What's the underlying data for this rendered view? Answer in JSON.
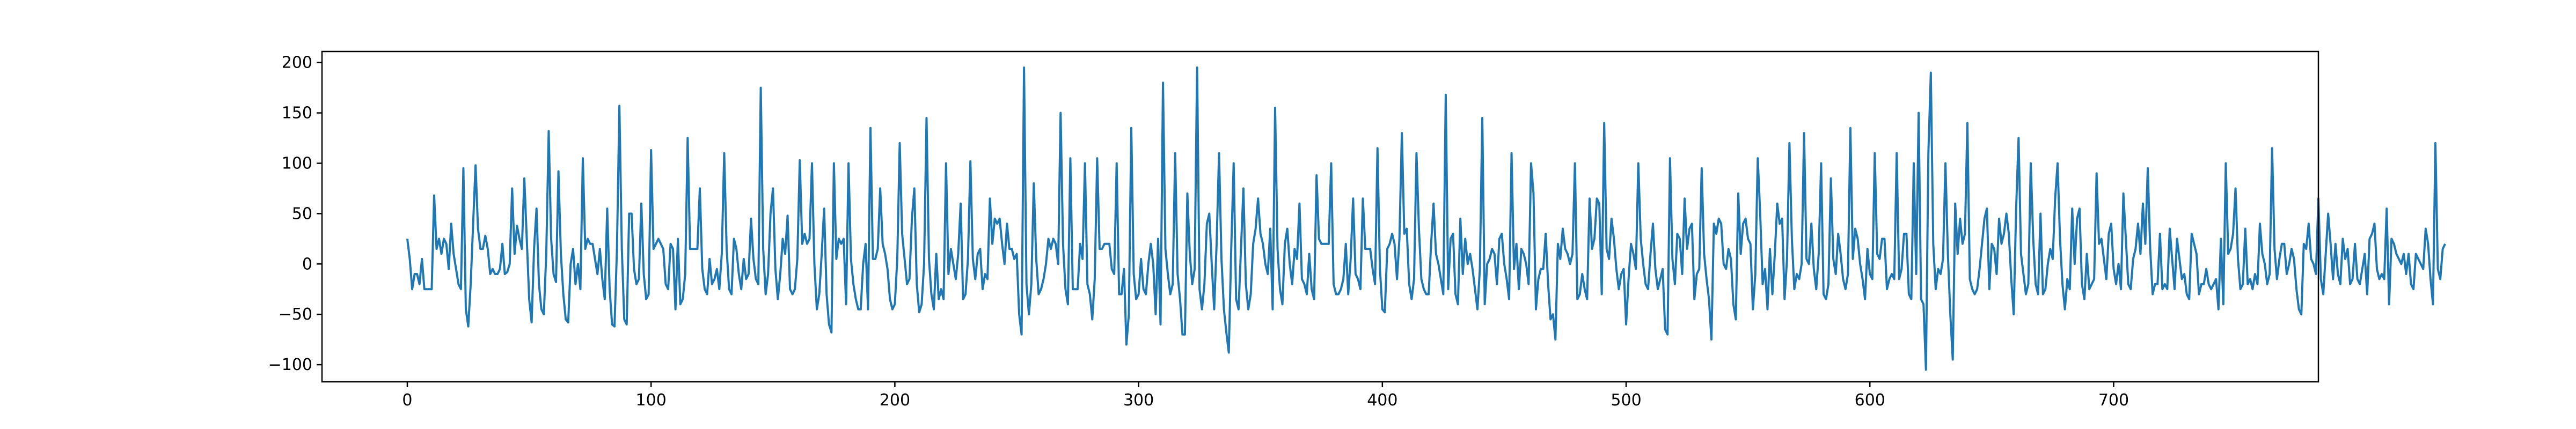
{
  "chart_data": {
    "type": "line",
    "title": "",
    "xlabel": "",
    "ylabel": "",
    "xlim": [
      -35,
      784
    ],
    "ylim": [
      -117,
      211
    ],
    "grid": false,
    "legend": "none",
    "x_ticks": [
      0,
      100,
      200,
      300,
      400,
      500,
      600,
      700
    ],
    "y_ticks": [
      -100,
      -50,
      0,
      50,
      100,
      150,
      200
    ],
    "x_tick_labels": [
      "0",
      "100",
      "200",
      "300",
      "400",
      "500",
      "600",
      "700"
    ],
    "y_tick_labels": [
      "−100",
      "−50",
      "0",
      "50",
      "100",
      "150",
      "200"
    ],
    "line_color": "#1f77b4",
    "series": [
      {
        "x_start": 0,
        "x_step": 1,
        "values": [
          25,
          5,
          -25,
          -10,
          -10,
          -20,
          5,
          -25,
          -25,
          -25,
          -25,
          68,
          15,
          25,
          10,
          25,
          20,
          -5,
          40,
          10,
          -5,
          -20,
          -25,
          95,
          -45,
          -62,
          -20,
          40,
          98,
          35,
          15,
          15,
          28,
          15,
          -10,
          -5,
          -10,
          -10,
          -5,
          20,
          -10,
          -8,
          0,
          75,
          10,
          38,
          25,
          15,
          85,
          25,
          -35,
          -58,
          15,
          55,
          -20,
          -45,
          -50,
          10,
          132,
          25,
          -10,
          -18,
          92,
          10,
          -30,
          -55,
          -58,
          0,
          15,
          -20,
          0,
          -25,
          105,
          15,
          25,
          20,
          20,
          5,
          -10,
          15,
          -15,
          -35,
          55,
          -25,
          -60,
          -62,
          15,
          157,
          15,
          -55,
          -60,
          50,
          50,
          -5,
          -20,
          -15,
          60,
          -10,
          -35,
          -30,
          113,
          15,
          20,
          25,
          20,
          15,
          -20,
          -25,
          20,
          15,
          -45,
          25,
          -40,
          -35,
          -10,
          125,
          15,
          15,
          15,
          15,
          75,
          -5,
          -25,
          -30,
          5,
          -20,
          -15,
          -5,
          -25,
          10,
          110,
          15,
          -25,
          -30,
          25,
          15,
          -10,
          -25,
          5,
          -15,
          -10,
          45,
          5,
          -15,
          -20,
          175,
          15,
          -30,
          -10,
          50,
          75,
          -5,
          -35,
          -10,
          25,
          10,
          48,
          -25,
          -30,
          -25,
          5,
          103,
          20,
          30,
          20,
          25,
          100,
          0,
          -45,
          -30,
          10,
          55,
          -30,
          -60,
          -68,
          100,
          5,
          25,
          20,
          25,
          -40,
          100,
          5,
          -20,
          -35,
          -45,
          -45,
          0,
          20,
          -45,
          135,
          5,
          5,
          15,
          75,
          20,
          10,
          -5,
          -35,
          -45,
          -40,
          5,
          120,
          30,
          5,
          -20,
          -15,
          45,
          75,
          -20,
          -48,
          -40,
          0,
          145,
          5,
          -30,
          -45,
          10,
          -35,
          -25,
          -35,
          100,
          -10,
          15,
          0,
          -15,
          10,
          60,
          -35,
          -30,
          5,
          102,
          5,
          -15,
          10,
          15,
          -25,
          -10,
          -15,
          65,
          20,
          45,
          40,
          45,
          20,
          0,
          40,
          15,
          15,
          5,
          10,
          -50,
          -70,
          195,
          -20,
          -50,
          -20,
          80,
          5,
          -30,
          -25,
          -15,
          0,
          25,
          15,
          25,
          20,
          0,
          150,
          20,
          -25,
          -40,
          105,
          -25,
          -25,
          -25,
          20,
          5,
          100,
          -20,
          -30,
          -55,
          -15,
          105,
          15,
          15,
          20,
          20,
          20,
          -5,
          -10,
          100,
          -30,
          -30,
          -5,
          -80,
          -50,
          135,
          -10,
          -35,
          -30,
          5,
          -25,
          -30,
          0,
          20,
          0,
          -50,
          25,
          -60,
          180,
          15,
          -10,
          -30,
          -20,
          110,
          -10,
          -35,
          -70,
          -70,
          70,
          10,
          -20,
          -5,
          195,
          -25,
          -45,
          -20,
          40,
          50,
          0,
          -45,
          20,
          110,
          5,
          -45,
          -68,
          -88,
          15,
          100,
          -35,
          -45,
          15,
          75,
          -20,
          -45,
          -30,
          20,
          35,
          65,
          30,
          20,
          0,
          -10,
          35,
          -45,
          155,
          15,
          -25,
          -40,
          20,
          35,
          0,
          -20,
          15,
          5,
          60,
          -15,
          -20,
          -30,
          10,
          -25,
          -35,
          88,
          25,
          20,
          20,
          20,
          20,
          100,
          -20,
          -30,
          -30,
          -25,
          -15,
          20,
          -30,
          5,
          65,
          -10,
          -15,
          -25,
          65,
          15,
          15,
          15,
          -5,
          -20,
          115,
          -5,
          -45,
          -48,
          15,
          20,
          30,
          20,
          -15,
          25,
          130,
          30,
          35,
          -20,
          -35,
          -15,
          110,
          35,
          -15,
          -25,
          -30,
          -30,
          20,
          60,
          10,
          0,
          -15,
          -30,
          168,
          -25,
          25,
          30,
          -30,
          -40,
          45,
          -10,
          25,
          0,
          10,
          -5,
          -25,
          -45,
          -5,
          145,
          -40,
          0,
          5,
          15,
          10,
          -20,
          25,
          30,
          0,
          -15,
          -35,
          110,
          -5,
          20,
          -25,
          15,
          10,
          0,
          -20,
          100,
          70,
          -45,
          -15,
          -5,
          -5,
          30,
          -20,
          -55,
          -50,
          -75,
          20,
          5,
          35,
          15,
          10,
          0,
          10,
          100,
          -35,
          -30,
          -10,
          -25,
          -35,
          65,
          15,
          25,
          65,
          60,
          -30,
          140,
          15,
          5,
          45,
          25,
          -5,
          -25,
          -10,
          -5,
          -60,
          -15,
          20,
          10,
          -5,
          100,
          25,
          0,
          -20,
          -25,
          10,
          40,
          -5,
          -25,
          -15,
          -5,
          -65,
          -70,
          105,
          5,
          -20,
          30,
          25,
          -10,
          65,
          15,
          35,
          40,
          -35,
          -10,
          -5,
          95,
          10,
          -15,
          -35,
          -75,
          40,
          30,
          45,
          40,
          0,
          -5,
          15,
          5,
          -40,
          -55,
          70,
          10,
          40,
          45,
          25,
          20,
          -45,
          -10,
          105,
          50,
          -20,
          -5,
          -45,
          15,
          -30,
          10,
          60,
          40,
          45,
          -35,
          5,
          120,
          25,
          -25,
          -10,
          -15,
          0,
          130,
          5,
          0,
          40,
          -5,
          -25,
          10,
          100,
          -30,
          -35,
          -20,
          85,
          5,
          -10,
          30,
          10,
          -15,
          -25,
          -10,
          135,
          5,
          35,
          25,
          0,
          -15,
          -35,
          15,
          -10,
          -15,
          110,
          10,
          5,
          25,
          25,
          -25,
          -15,
          -10,
          -15,
          110,
          -15,
          -5,
          30,
          30,
          -30,
          -35,
          100,
          -10,
          150,
          -35,
          -40,
          -105,
          110,
          190,
          20,
          -25,
          -5,
          -10,
          5,
          100,
          10,
          -50,
          -95,
          60,
          10,
          45,
          20,
          30,
          140,
          -15,
          -25,
          -30,
          -25,
          -5,
          20,
          45,
          55,
          -25,
          20,
          15,
          -10,
          45,
          20,
          30,
          50,
          30,
          -15,
          -50,
          55,
          125,
          10,
          -10,
          -30,
          -20,
          100,
          25,
          -20,
          -30,
          50,
          -30,
          -25,
          0,
          15,
          5,
          65,
          100,
          25,
          -20,
          -45,
          -15,
          -25,
          55,
          0,
          45,
          55,
          -20,
          -35,
          10,
          -25,
          -20,
          -15,
          90,
          20,
          25,
          5,
          -15,
          30,
          40,
          -5,
          -20,
          0,
          -25,
          70,
          25,
          -20,
          -25,
          5,
          15,
          40,
          10,
          60,
          20,
          95,
          15,
          -30,
          -20,
          -20,
          30,
          -25,
          -20,
          -25,
          35,
          5,
          -25,
          25,
          5,
          -15,
          -10,
          -30,
          -35,
          30,
          20,
          10,
          -30,
          -20,
          -20,
          -5,
          -20,
          -25,
          -20,
          -15,
          -45,
          25,
          -40,
          100,
          10,
          15,
          30,
          75,
          5,
          -25,
          -20,
          35,
          -20,
          -15,
          -25,
          -10,
          -20,
          40,
          10,
          0,
          -20,
          -10,
          115,
          15,
          -15,
          5,
          20,
          20,
          -10,
          0,
          15,
          5,
          -25,
          -45,
          -50,
          20,
          15,
          40,
          5,
          0,
          -10,
          65,
          -15,
          -30,
          10,
          50,
          20,
          -15,
          20,
          -10,
          -20,
          25,
          5,
          15,
          -20,
          -15,
          20,
          -15,
          -20,
          -5,
          10,
          -30,
          25,
          30,
          40,
          -5,
          -15,
          -10,
          -15,
          55,
          -40,
          25,
          20,
          10,
          5,
          0,
          10,
          -10,
          10,
          -20,
          -25,
          10,
          5,
          0,
          -5,
          35,
          20,
          -15,
          -40,
          120,
          -5,
          -15,
          15,
          20
        ]
      }
    ]
  }
}
